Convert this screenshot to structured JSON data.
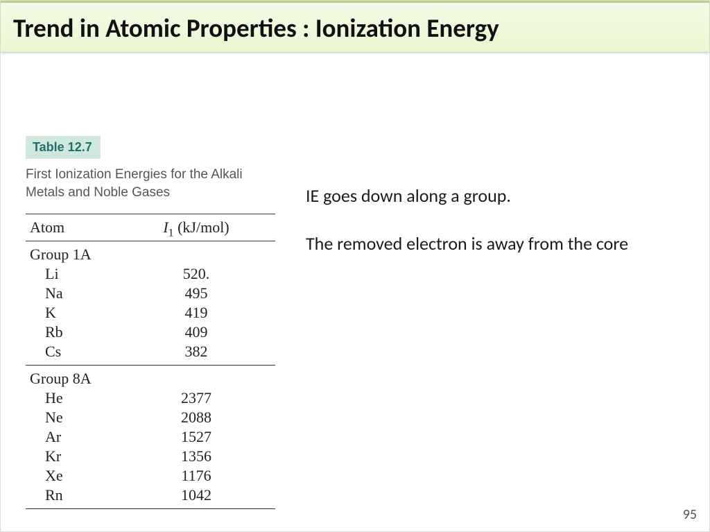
{
  "title": "Trend in Atomic Properties : Ionization Energy",
  "table": {
    "badge": "Table 12.7",
    "caption": "First Ionization Energies for the Alkali Metals and Noble Gases",
    "header_col1": "Atom",
    "header_col2_pre": "I",
    "header_col2_sub": "1",
    "header_col2_post": " (kJ/mol)",
    "groups": [
      {
        "label": "Group 1A",
        "rows": [
          {
            "atom": "Li",
            "value": "520."
          },
          {
            "atom": "Na",
            "value": "495"
          },
          {
            "atom": "K",
            "value": "419"
          },
          {
            "atom": "Rb",
            "value": "409"
          },
          {
            "atom": "Cs",
            "value": "382"
          }
        ]
      },
      {
        "label": "Group 8A",
        "rows": [
          {
            "atom": "He",
            "value": "2377"
          },
          {
            "atom": "Ne",
            "value": "2088"
          },
          {
            "atom": "Ar",
            "value": "1527"
          },
          {
            "atom": "Kr",
            "value": "1356"
          },
          {
            "atom": "Xe",
            "value": "1176"
          },
          {
            "atom": "Rn",
            "value": "1042"
          }
        ]
      }
    ]
  },
  "notes": {
    "line1": "IE goes down along a group.",
    "line2": "The removed electron is away from the core"
  },
  "page_number": "95",
  "colors": {
    "title_bg_top": "#f4fbe6",
    "title_bg_bottom": "#eaf6d1",
    "badge_bg": "#cfe7de",
    "badge_text": "#1f6f6f",
    "caption_text": "#555555",
    "rule": "#333333",
    "body_text": "#1a1a1a",
    "background": "#ffffff"
  }
}
